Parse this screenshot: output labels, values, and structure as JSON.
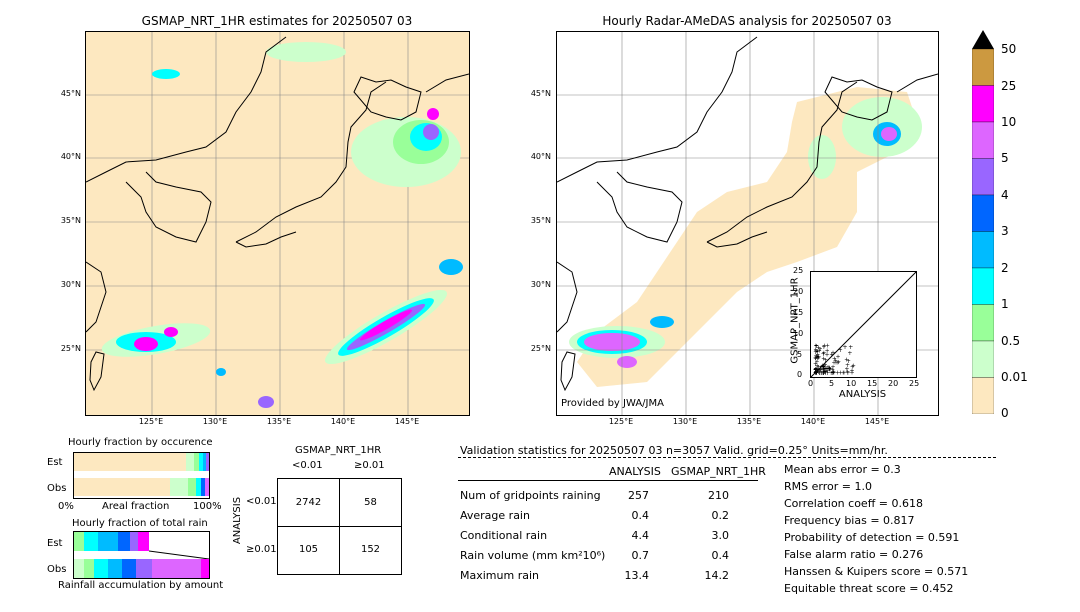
{
  "left_map": {
    "title": "GSMAP_NRT_1HR estimates for 20250507 03",
    "lat_labels": [
      "45°N",
      "40°N",
      "35°N",
      "30°N",
      "25°N"
    ],
    "lon_labels": [
      "125°E",
      "130°E",
      "135°E",
      "140°E",
      "145°E"
    ]
  },
  "right_map": {
    "title": "Hourly Radar-AMeDAS analysis for 20250507 03",
    "lat_labels": [
      "45°N",
      "40°N",
      "35°N",
      "30°N",
      "25°N"
    ],
    "lon_labels": [
      "125°E",
      "130°E",
      "135°E",
      "140°E",
      "145°E"
    ],
    "credit": "Provided by JWA/JMA"
  },
  "colorbar": {
    "labels": [
      "50",
      "25",
      "10",
      "5",
      "4",
      "3",
      "2",
      "1",
      "0.5",
      "0.01",
      "0"
    ],
    "colors": [
      "#cc9940",
      "#ff00ff",
      "#dd66ff",
      "#9966ff",
      "#0066ff",
      "#00bbff",
      "#00ffff",
      "#99ff99",
      "#ccffcc",
      "#fde8c0"
    ]
  },
  "scatter": {
    "xlabel": "ANALYSIS",
    "ylabel": "GSMAP_NRT_1HR",
    "ticks": [
      "0",
      "5",
      "10",
      "15",
      "20",
      "25"
    ]
  },
  "fraction_occurrence": {
    "title": "Hourly fraction by occurence",
    "row1": "Est",
    "row2": "Obs",
    "axis_left": "0%",
    "axis_mid": "Areal fraction",
    "axis_right": "100%"
  },
  "fraction_total": {
    "title": "Hourly fraction of total rain",
    "row1": "Est",
    "row2": "Obs",
    "caption": "Rainfall accumulation by amount"
  },
  "contingency": {
    "col_title": "GSMAP_NRT_1HR",
    "col1": "<0.01",
    "col2": "≥0.01",
    "row_title": "ANALYSIS",
    "row1": "<0.01",
    "row2": "≥0.01",
    "a": "2742",
    "b": "58",
    "c": "105",
    "d": "152"
  },
  "validation": {
    "header": "Validation statistics for 20250507 03  n=3057 Valid. grid=0.25° Units=mm/hr.",
    "col_analysis": "ANALYSIS",
    "col_gsmap": "GSMAP_NRT_1HR",
    "rows": [
      {
        "label": "Num of gridpoints raining",
        "analysis": "257",
        "gsmap": "210"
      },
      {
        "label": "Average rain",
        "analysis": "0.4",
        "gsmap": "0.2"
      },
      {
        "label": "Conditional rain",
        "analysis": "4.4",
        "gsmap": "3.0"
      },
      {
        "label": "Rain volume (mm km²10⁶)",
        "analysis": "0.7",
        "gsmap": "0.4"
      },
      {
        "label": "Maximum rain",
        "analysis": "13.4",
        "gsmap": "14.2"
      }
    ],
    "scores": [
      "Mean abs error =    0.3",
      "RMS error =    1.0",
      "Correlation coeff =  0.618",
      "Frequency bias =  0.817",
      "Probability of detection =  0.591",
      "False alarm ratio =  0.276",
      "Hanssen & Kuipers score =  0.571",
      "Equitable threat score =  0.452"
    ]
  }
}
